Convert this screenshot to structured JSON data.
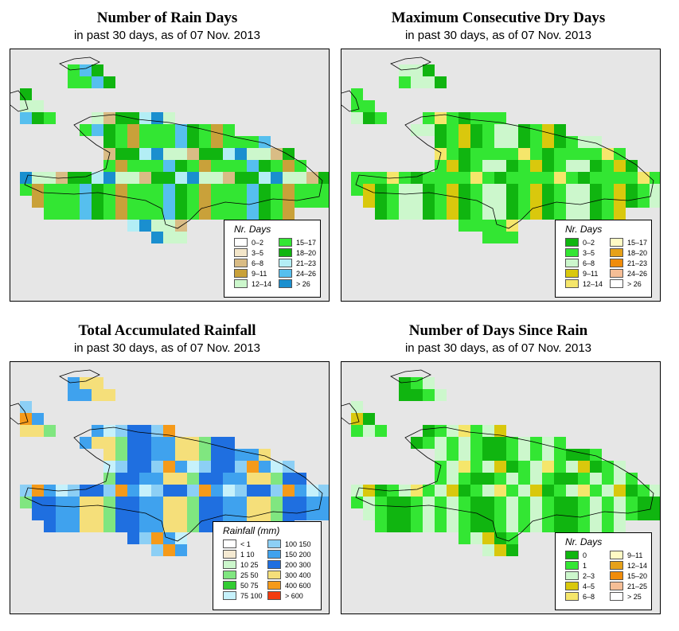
{
  "panels": [
    {
      "title": "Number of Rain Days",
      "subtitle": "in past 30 days, as of  07 Nov. 2013",
      "legend_title": "Nr. Days",
      "legend": [
        {
          "label": "0–2",
          "color": "#ffffff"
        },
        {
          "label": "3–5",
          "color": "#f3e6c9"
        },
        {
          "label": "6–8",
          "color": "#d9bc85"
        },
        {
          "label": "9–11",
          "color": "#c9a13a"
        },
        {
          "label": "12–14",
          "color": "#ccf7cc"
        },
        {
          "label": "15–17",
          "color": "#33e633"
        },
        {
          "label": "18–20",
          "color": "#10b510"
        },
        {
          "label": "21–23",
          "color": "#b3eef5"
        },
        {
          "label": "24–26",
          "color": "#56bfee"
        },
        {
          "label": "> 26",
          "color": "#1a8fcf"
        }
      ]
    },
    {
      "title": "Maximum Consecutive Dry Days",
      "subtitle": "in past 30 days, as of  07 Nov. 2013",
      "legend_title": "Nr. Days",
      "legend": [
        {
          "label": "0–2",
          "color": "#10b510"
        },
        {
          "label": "3–5",
          "color": "#33e633"
        },
        {
          "label": "6–8",
          "color": "#ccf7cc"
        },
        {
          "label": "9–11",
          "color": "#d9c80d"
        },
        {
          "label": "12–14",
          "color": "#f5e66b"
        },
        {
          "label": "15–17",
          "color": "#fffac4"
        },
        {
          "label": "18–20",
          "color": "#e6a11a"
        },
        {
          "label": "21–23",
          "color": "#f08c0a"
        },
        {
          "label": "24–26",
          "color": "#f5be96"
        },
        {
          "label": "> 26",
          "color": "#ffffff"
        }
      ]
    },
    {
      "title": "Total Accumulated Rainfall",
      "subtitle": "in past 30 days, as of  07 Nov. 2013",
      "legend_title": "Rainfall (mm)",
      "legend": [
        {
          "label": "< 1",
          "color": "#ffffff"
        },
        {
          "label": "1    10",
          "color": "#f5ead2"
        },
        {
          "label": "10    25",
          "color": "#ccf7cc"
        },
        {
          "label": "25    50",
          "color": "#80e680"
        },
        {
          "label": "50    75",
          "color": "#33cc33"
        },
        {
          "label": "75  100",
          "color": "#c6f1fb"
        },
        {
          "label": "100  150",
          "color": "#8ccff5"
        },
        {
          "label": "150  200",
          "color": "#3fa2ee"
        },
        {
          "label": "200  300",
          "color": "#1f6fe0"
        },
        {
          "label": "300  400",
          "color": "#f5df7a"
        },
        {
          "label": "400  600",
          "color": "#f59a1a"
        },
        {
          "label": "> 600",
          "color": "#f23c0f"
        }
      ]
    },
    {
      "title": "Number of Days Since Rain",
      "subtitle": "in past 30 days, as of  07 Nov. 2013",
      "legend_title": "Nr. Days",
      "legend": [
        {
          "label": "0",
          "color": "#10b510"
        },
        {
          "label": "1",
          "color": "#33e633"
        },
        {
          "label": "2–3",
          "color": "#ccf7cc"
        },
        {
          "label": "4–5",
          "color": "#d9c80d"
        },
        {
          "label": "6–8",
          "color": "#f5e66b"
        },
        {
          "label": "9–11",
          "color": "#fffac4"
        },
        {
          "label": "12–14",
          "color": "#e6a11a"
        },
        {
          "label": "15–20",
          "color": "#f08c0a"
        },
        {
          "label": "21–25",
          "color": "#f5be96"
        },
        {
          "label": "> 25",
          "color": "#ffffff"
        }
      ]
    }
  ]
}
